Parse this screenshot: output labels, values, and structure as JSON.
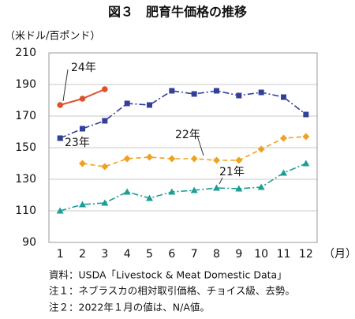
{
  "chart_data": {
    "type": "line",
    "title": "図３　肥育牛価格の推移",
    "y_label": "（米ドル/百ポンド）",
    "x_label": "（月）",
    "categories": [
      "1",
      "2",
      "3",
      "4",
      "5",
      "6",
      "7",
      "8",
      "9",
      "10",
      "11",
      "12"
    ],
    "ylim": [
      90,
      210
    ],
    "yticks": [
      90,
      110,
      130,
      150,
      170,
      190,
      210
    ],
    "grid": true,
    "series": [
      {
        "name": "24年",
        "color": "#e0502a",
        "marker": "circle",
        "dash": "solid",
        "values": [
          177,
          181,
          187,
          null,
          null,
          null,
          null,
          null,
          null,
          null,
          null,
          null
        ]
      },
      {
        "name": "23年",
        "color": "#33409a",
        "marker": "square",
        "dash": "dashdot",
        "values": [
          156,
          162,
          167,
          178,
          177,
          186,
          184,
          186,
          183,
          185,
          182,
          171
        ]
      },
      {
        "name": "22年",
        "color": "#f0a11e",
        "marker": "diamond",
        "dash": "dash",
        "values": [
          null,
          140,
          138,
          143,
          144,
          143,
          143,
          142,
          142,
          149,
          156,
          157
        ]
      },
      {
        "name": "21年",
        "color": "#1a9e96",
        "marker": "triangle",
        "dash": "dashdot",
        "values": [
          110,
          114,
          115,
          122,
          118,
          122,
          123,
          124.5,
          124,
          125,
          134,
          140
        ]
      }
    ],
    "notes": [
      "資料：USDA「Livestock & Meat Domestic Data」",
      "注１：ネブラスカの相対取引価格、チョイス級、去勢。",
      "注２：2022年１月の値は、N/A値。"
    ]
  }
}
